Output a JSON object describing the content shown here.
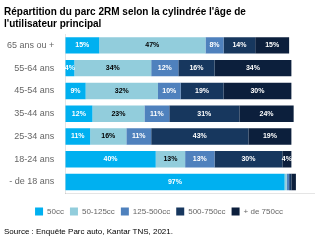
{
  "chart_data": {
    "type": "bar",
    "orientation": "horizontal",
    "stacked": true,
    "title": "Répartition du parc 2RM selon la cylindrée l'âge de\nl'utilisateur principal",
    "annotations": [
      "Source : Enquête Parc auto, Kantar TNS, 2021."
    ],
    "categories": [
      "65 ans ou +",
      "55-64 ans",
      "45-54 ans",
      "35-44 ans",
      "25-34 ans",
      "18-24 ans",
      "- de 18 ans"
    ],
    "series": [
      {
        "name": "50cc",
        "color": "#00b0f0",
        "values": [
          15,
          4,
          9,
          12,
          11,
          40,
          97
        ],
        "value_labels": [
          "15%",
          "4%",
          "9%",
          "12%",
          "11%",
          "40%",
          "97%"
        ]
      },
      {
        "name": "50-125cc",
        "color": "#92cddc",
        "values": [
          47,
          34,
          32,
          23,
          16,
          13,
          1
        ],
        "value_labels": [
          "47%",
          "34%",
          "32%",
          "23%",
          "16%",
          "13%",
          null
        ]
      },
      {
        "name": "125-500cc",
        "color": "#4f81bd",
        "values": [
          8,
          12,
          10,
          11,
          11,
          13,
          1
        ],
        "value_labels": [
          "8%",
          "12%",
          "10%",
          "11%",
          "11%",
          "13%",
          null
        ]
      },
      {
        "name": "500-750cc",
        "color": "#17375e",
        "values": [
          14,
          16,
          19,
          31,
          43,
          30,
          1
        ],
        "value_labels": [
          "14%",
          "16%",
          "19%",
          "31%",
          "43%",
          "30%",
          null
        ]
      },
      {
        "name": "+ de 750cc",
        "color": "#0c1f3c",
        "values": [
          15,
          34,
          30,
          24,
          19,
          4,
          2
        ],
        "value_labels": [
          "15%",
          "34%",
          "30%",
          "24%",
          "19%",
          "4%",
          null
        ]
      }
    ],
    "xlim": [
      0,
      110
    ],
    "xticks": [
      0,
      10,
      20,
      30,
      40,
      50,
      60,
      70,
      80,
      90,
      100,
      110
    ],
    "grid": false,
    "legend": "bottom",
    "data_labels": true,
    "tick_labels": "y"
  }
}
